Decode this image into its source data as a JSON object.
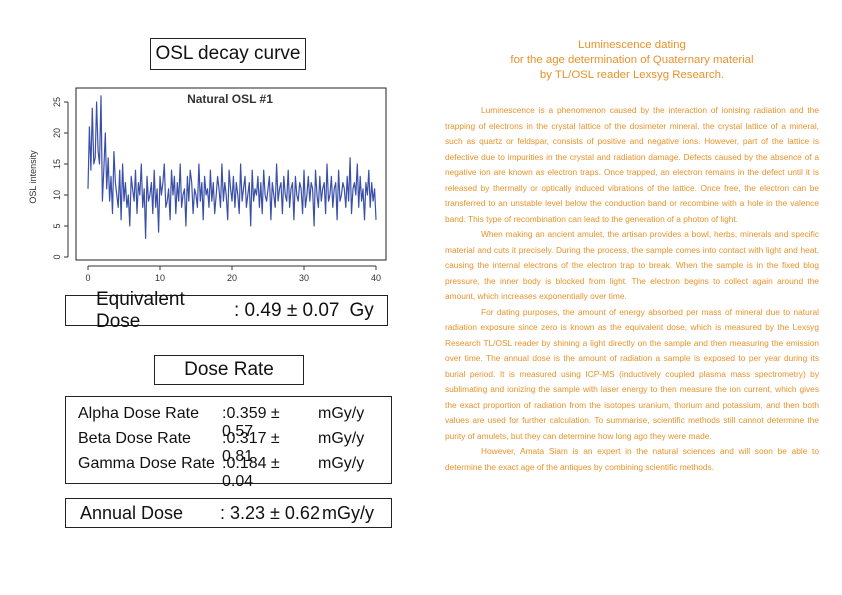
{
  "left": {
    "osl_title": "OSL decay curve",
    "equivalent_dose": {
      "label": "Equivalent Dose",
      "value": ": 0.49 ± 0.07",
      "unit": "Gy"
    },
    "dose_rate_title": "Dose Rate",
    "rates": [
      {
        "label": "Alpha Dose Rate",
        "value": ":0.359 ± 0.57",
        "unit": "mGy/y"
      },
      {
        "label": "Beta Dose Rate",
        "value": ":0.317 ± 0.81",
        "unit": "mGy/y"
      },
      {
        "label": "Gamma Dose Rate",
        "value": ":0.184 ± 0.04",
        "unit": "mGy/y"
      }
    ],
    "annual_dose": {
      "label": "Annual Dose",
      "value": ": 3.23 ± 0.62",
      "unit": "mGy/y"
    }
  },
  "chart_data": {
    "type": "line",
    "title": "Natural OSL #1",
    "xlabel": "",
    "ylabel": "OSL intensity",
    "xlim": [
      0,
      40
    ],
    "ylim": [
      0,
      25
    ],
    "xticks": [
      0,
      10,
      20,
      30,
      40
    ],
    "yticks": [
      0,
      5,
      10,
      15,
      20,
      25
    ],
    "grid": false,
    "color": "#3a4fa8",
    "series": [
      {
        "x": [
          0,
          0.2,
          0.4,
          0.6,
          0.8,
          1,
          1.2,
          1.4,
          1.6,
          1.8,
          2,
          2.2,
          2.4,
          2.6,
          2.8,
          3,
          3.2,
          3.4,
          3.6,
          3.8,
          4,
          4.2,
          4.4,
          4.6,
          4.8,
          5,
          5.2,
          5.4,
          5.6,
          5.8,
          6,
          6.2,
          6.4,
          6.6,
          6.8,
          7,
          7.2,
          7.4,
          7.6,
          7.8,
          8,
          8.2,
          8.4,
          8.6,
          8.8,
          9,
          9.2,
          9.4,
          9.6,
          9.8,
          10,
          10.2,
          10.4,
          10.6,
          10.8,
          11,
          11.2,
          11.4,
          11.6,
          11.8,
          12,
          12.2,
          12.4,
          12.6,
          12.8,
          13,
          13.2,
          13.4,
          13.6,
          13.8,
          14,
          14.2,
          14.4,
          14.6,
          14.8,
          15,
          15.2,
          15.4,
          15.6,
          15.8,
          16,
          16.2,
          16.4,
          16.6,
          16.8,
          17,
          17.2,
          17.4,
          17.6,
          17.8,
          18,
          18.2,
          18.4,
          18.6,
          18.8,
          19,
          19.2,
          19.4,
          19.6,
          19.8,
          20,
          20.2,
          20.4,
          20.6,
          20.8,
          21,
          21.2,
          21.4,
          21.6,
          21.8,
          22,
          22.2,
          22.4,
          22.6,
          22.8,
          23,
          23.2,
          23.4,
          23.6,
          23.8,
          24,
          24.2,
          24.4,
          24.6,
          24.8,
          25,
          25.2,
          25.4,
          25.6,
          25.8,
          26,
          26.2,
          26.4,
          26.6,
          26.8,
          27,
          27.2,
          27.4,
          27.6,
          27.8,
          28,
          28.2,
          28.4,
          28.6,
          28.8,
          29,
          29.2,
          29.4,
          29.6,
          29.8,
          30,
          30.2,
          30.4,
          30.6,
          30.8,
          31,
          31.2,
          31.4,
          31.6,
          31.8,
          32,
          32.2,
          32.4,
          32.6,
          32.8,
          33,
          33.2,
          33.4,
          33.6,
          33.8,
          34,
          34.2,
          34.4,
          34.6,
          34.8,
          35,
          35.2,
          35.4,
          35.6,
          35.8,
          36,
          36.2,
          36.4,
          36.6,
          36.8,
          37,
          37.2,
          37.4,
          37.6,
          37.8,
          38,
          38.2,
          38.4,
          38.6,
          38.8,
          39,
          39.2,
          39.4,
          39.6,
          39.8,
          40
        ],
        "y": [
          11,
          21,
          14,
          24,
          15,
          16,
          25,
          17,
          15,
          26,
          9,
          14,
          20,
          11,
          16,
          9,
          13,
          7,
          17,
          12,
          10,
          8,
          14,
          6,
          15,
          9,
          12,
          8,
          10,
          5,
          13,
          11,
          9,
          14,
          7,
          12,
          10,
          15,
          8,
          11,
          3,
          13,
          9,
          10,
          12,
          7,
          14,
          8,
          11,
          4,
          13,
          10,
          12,
          15,
          8,
          9,
          11,
          6,
          14,
          10,
          13,
          7,
          12,
          9,
          15,
          8,
          10,
          11,
          5,
          13,
          9,
          14,
          12,
          7,
          11,
          10,
          8,
          15,
          9,
          12,
          6,
          13,
          10,
          11,
          8,
          14,
          9,
          12,
          7,
          10,
          13,
          11,
          8,
          15,
          9,
          12,
          10,
          6,
          14,
          11,
          9,
          13,
          8,
          12,
          10,
          7,
          15,
          9,
          11,
          13,
          8,
          10,
          12,
          5,
          14,
          9,
          11,
          10,
          13,
          8,
          12,
          7,
          14,
          10,
          9,
          11,
          13,
          6,
          12,
          10,
          8,
          15,
          9,
          11,
          12,
          7,
          13,
          10,
          9,
          14,
          8,
          11,
          12,
          6,
          13,
          10,
          9,
          12,
          11,
          7,
          14,
          8,
          10,
          13,
          9,
          12,
          11,
          5,
          14,
          10,
          8,
          13,
          9,
          11,
          12,
          7,
          15,
          9,
          10,
          13,
          8,
          11,
          12,
          6,
          14,
          9,
          10,
          12,
          11,
          8,
          13,
          9,
          16,
          7,
          11,
          12,
          10,
          15,
          8,
          13,
          9,
          11,
          6,
          12,
          10,
          14,
          8,
          12,
          9,
          11,
          6
        ]
      }
    ]
  },
  "article": {
    "title": [
      "Luminescence dating",
      "for the age determination of Quaternary material",
      "by TL/OSL reader Lexsyg Research."
    ],
    "paragraphs": [
      "Luminescence is a phenomenon caused by the interaction of ionising radiation and the trapping of electrons in the crystal lattice of the dosimeter mineral. the crystal lattice of a mineral, such as quartz or feldspar, consists of positive and negative ions. However, part of the lattice is defective due to impurities in the crystal and radiation damage. Defects caused by the absence of a negative ion are known as electron traps. Once trapped, an electron remains in the defect until it is released by thermally or optically induced vibrations of the lattice. Once free, the electron can be transferred to an unstable level below the conduction band or recombine with a hole in the valence band. This type of recombination can lead to the generation of a photon of light.",
      "When making an ancient amulet, the artisan provides a bowl, herbs, minerals and specific material and cuts it precisely. During the process, the sample comes into contact with light and heat, causing the internal electrons of the electron trap to break. When the sample is in the fixed blog pressure, the inner body is blocked from light. The electron begins to collect again around the amount, which increases exponentially over time.",
      "For dating purposes, the amount of energy absorbed per mass of mineral due to natural radiation exposure since zero is known as the equivalent dose, which is measured by the Lexsyg Research TL/OSL reader by shining a light directly on the sample and then measuring the emission over time. The annual dose is the amount of radiation a sample is exposed to per year during its burial period. It is measured using ICP-MS (inductively coupled plasma mass spectrometry) by sublimating and ionizing the sample with laser energy to then measure the ion current, which gives the exact proportion of radiation from the isotopes uranium, thorium and potassium, and then both values are used for further calculation. To summarise, scientific methods still cannot determine the purity of amulets, but they can determine how long ago they were made.",
      "However, Amata Siam is an expert in the natural sciences and will soon be able to determine the exact age of the antiques by combining scientific methods."
    ]
  }
}
